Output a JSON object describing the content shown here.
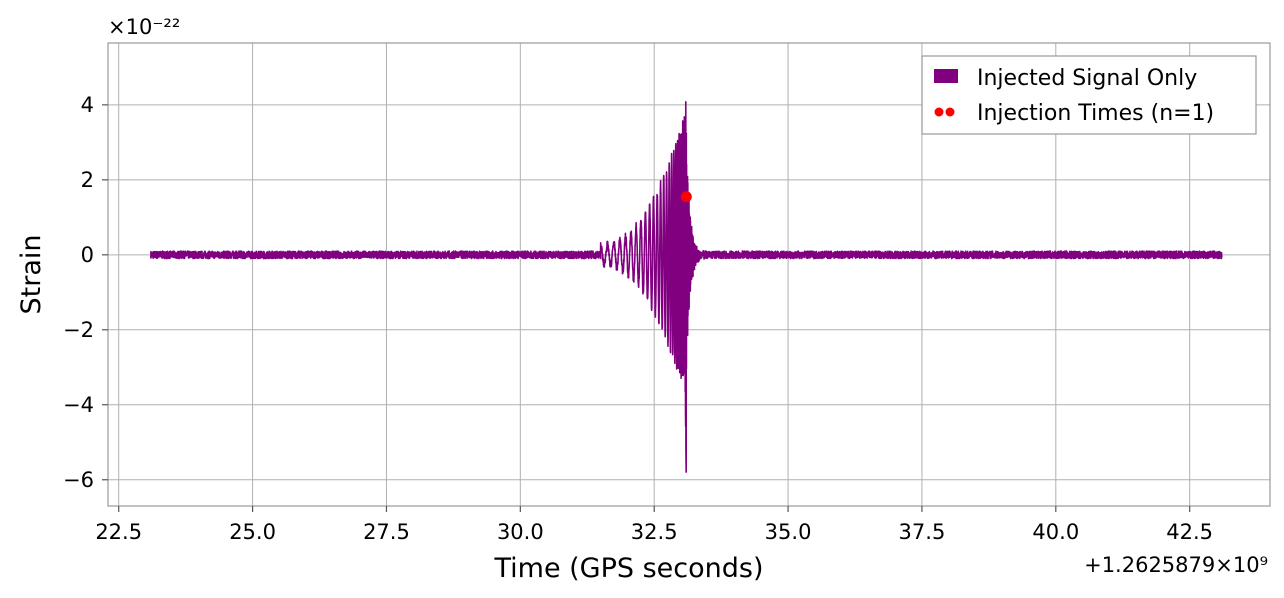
{
  "chart_data": {
    "type": "line",
    "xlabel": "Time (GPS seconds)",
    "ylabel": "Strain",
    "y_multiplier_text": "×10⁻²²",
    "x_offset_text": "+1.2625879×10⁹",
    "xlim": [
      22.3,
      44.0
    ],
    "ylim": [
      -6.7,
      5.65
    ],
    "x_ticks": [
      22.5,
      25.0,
      27.5,
      30.0,
      32.5,
      35.0,
      37.5,
      40.0,
      42.5
    ],
    "x_tick_labels": [
      "22.5",
      "25.0",
      "27.5",
      "30.0",
      "32.5",
      "35.0",
      "37.5",
      "40.0",
      "42.5"
    ],
    "y_ticks": [
      4,
      2,
      0,
      -2,
      -4,
      -6
    ],
    "y_tick_labels": [
      "4",
      "2",
      "0",
      "−2",
      "−4",
      "−6"
    ],
    "grid": true,
    "legend_position": "top-right",
    "series": [
      {
        "name": "Injected Signal Only",
        "kind": "line",
        "color": "#800080",
        "x_range": [
          23.1,
          43.1
        ],
        "baseline_noise_amplitude": 0.1,
        "burst_start": 31.5,
        "peak_time": 33.1,
        "ringdown_end": 33.5,
        "peak_max": 5.1,
        "peak_min": -6.1
      },
      {
        "name": "Injection Times (n=1)",
        "kind": "scatter",
        "color": "#ff0000",
        "points": [
          {
            "x": 33.1,
            "y": 1.55
          }
        ]
      }
    ]
  }
}
